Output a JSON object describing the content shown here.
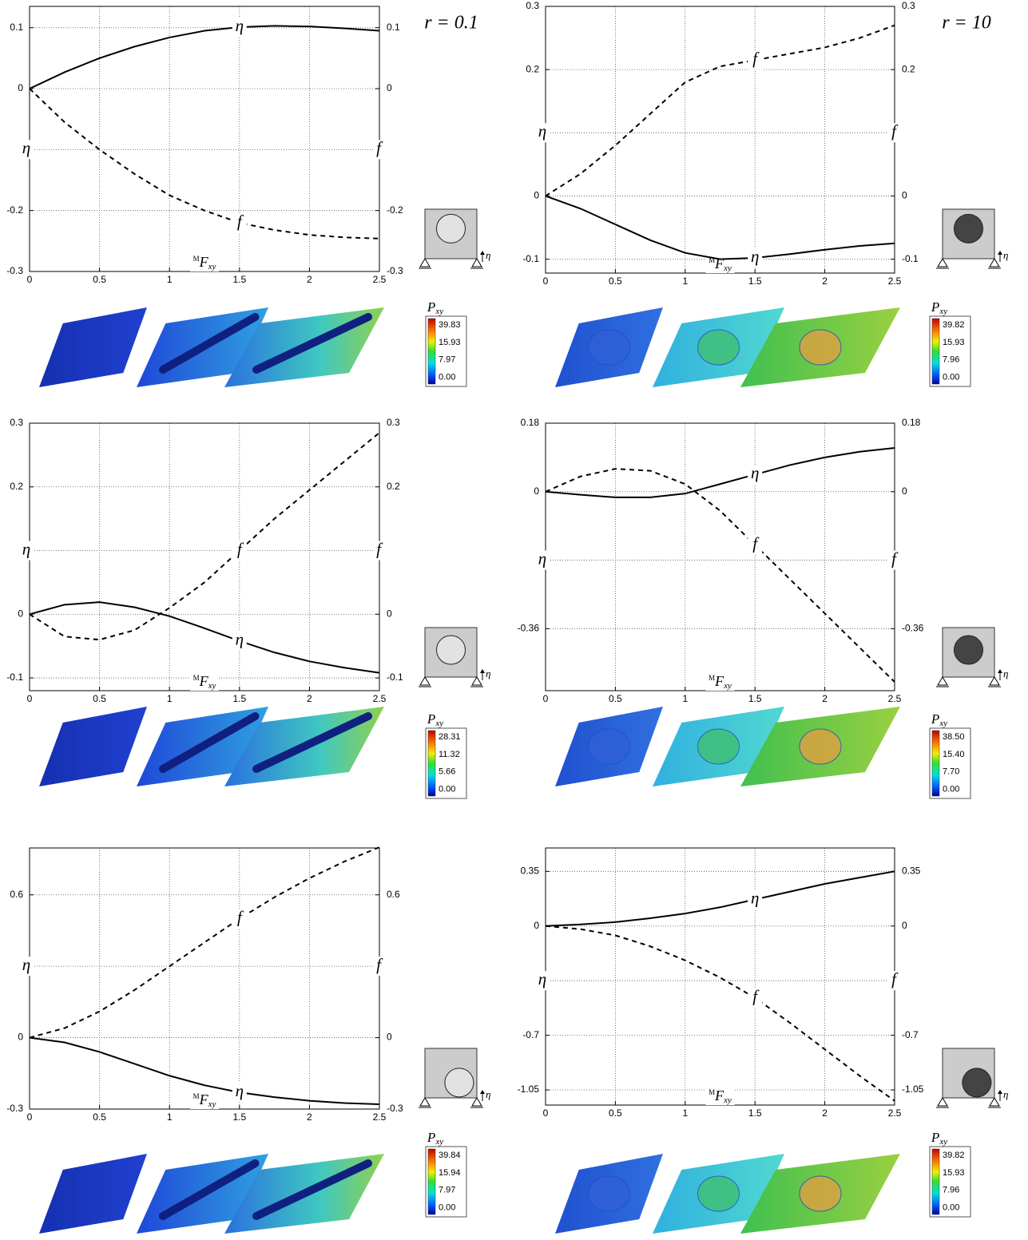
{
  "chart_data": [
    {
      "type": "line",
      "annotation": "r = 0.1",
      "xlabel": {
        "sup": "M",
        "main": "F",
        "sub": "xy"
      },
      "ylabel": "η",
      "y2label": "f",
      "x": [
        0,
        0.25,
        0.5,
        0.75,
        1,
        1.25,
        1.5,
        1.75,
        2,
        2.25,
        2.5
      ],
      "series": [
        {
          "name": "f",
          "color": "#000000",
          "dash": true,
          "values": [
            0,
            -0.055,
            -0.1,
            -0.14,
            -0.175,
            -0.2,
            -0.22,
            -0.232,
            -0.24,
            -0.244,
            -0.246
          ]
        },
        {
          "name": "η",
          "color": "#000000",
          "dash": false,
          "values": [
            0,
            0.027,
            0.05,
            0.069,
            0.084,
            0.095,
            0.101,
            0.103,
            0.102,
            0.099,
            0.095
          ]
        }
      ],
      "xlim": [
        0,
        2.5
      ],
      "xticks": [
        0,
        0.5,
        1,
        1.5,
        2,
        2.5
      ],
      "ylim": [
        -0.3,
        0.135
      ],
      "yticks": [
        -0.3,
        -0.2,
        {
          "value": -0.1,
          "label": null
        },
        0,
        0.1
      ],
      "y2lim": [
        -0.3,
        0.135
      ],
      "y2ticks": [
        -0.3,
        -0.2,
        {
          "value": -0.1,
          "label": null
        },
        0,
        0.1
      ],
      "grid": true,
      "colorbar": {
        "title": {
          "main": "P",
          "sub": "xy"
        },
        "ticks": [
          39.83,
          15.93,
          7.97,
          {
            "value": 0,
            "label": "0.00"
          }
        ]
      }
    },
    {
      "type": "line",
      "annotation": "r = 10",
      "xlabel": {
        "sup": "M",
        "main": "F",
        "sub": "xy"
      },
      "ylabel": "η",
      "y2label": "f",
      "x": [
        0,
        0.25,
        0.5,
        0.75,
        1,
        1.25,
        1.5,
        1.75,
        2,
        2.25,
        2.5
      ],
      "series": [
        {
          "name": "f",
          "color": "#000000",
          "dash": true,
          "values": [
            0,
            0.035,
            0.08,
            0.13,
            0.18,
            0.205,
            0.215,
            0.225,
            0.235,
            0.25,
            0.27
          ]
        },
        {
          "name": "η",
          "color": "#000000",
          "dash": false,
          "values": [
            0,
            -0.02,
            -0.045,
            -0.07,
            -0.09,
            -0.1,
            -0.098,
            -0.092,
            -0.085,
            -0.079,
            -0.075
          ]
        }
      ],
      "xlim": [
        0,
        2.5
      ],
      "xticks": [
        0,
        0.5,
        1,
        1.5,
        2,
        2.5
      ],
      "ylim": [
        -0.122,
        0.3
      ],
      "yticks": [
        -0.1,
        0,
        {
          "value": 0.1,
          "label": null
        },
        0.2,
        0.3
      ],
      "y2lim": [
        -0.122,
        0.3
      ],
      "y2ticks": [
        -0.1,
        0,
        {
          "value": 0.1,
          "label": null
        },
        0.2,
        0.3
      ],
      "grid": true,
      "colorbar": {
        "title": {
          "main": "P",
          "sub": "xy"
        },
        "ticks": [
          39.82,
          15.93,
          7.96,
          {
            "value": 0,
            "label": "0.00"
          }
        ]
      }
    },
    {
      "type": "line",
      "xlabel": {
        "sup": "M",
        "main": "F",
        "sub": "xy"
      },
      "ylabel": "η",
      "y2label": "f",
      "x": [
        0,
        0.25,
        0.5,
        0.75,
        1,
        1.25,
        1.5,
        1.75,
        2,
        2.25,
        2.5
      ],
      "series": [
        {
          "name": "f",
          "color": "#000000",
          "dash": true,
          "values": [
            0,
            -0.035,
            -0.04,
            -0.025,
            0.01,
            0.05,
            0.1,
            0.15,
            0.195,
            0.24,
            0.285
          ]
        },
        {
          "name": "η",
          "color": "#000000",
          "dash": false,
          "values": [
            0,
            0.015,
            0.019,
            0.011,
            -0.003,
            -0.022,
            -0.042,
            -0.06,
            -0.074,
            -0.084,
            -0.092
          ]
        }
      ],
      "xlim": [
        0,
        2.5
      ],
      "xticks": [
        0,
        0.5,
        1,
        1.5,
        2,
        2.5
      ],
      "ylim": [
        -0.12,
        0.3
      ],
      "yticks": [
        -0.1,
        0,
        {
          "value": 0.1,
          "label": null
        },
        0.2,
        0.3
      ],
      "y2lim": [
        -0.12,
        0.3
      ],
      "y2ticks": [
        -0.1,
        0,
        {
          "value": 0.1,
          "label": null
        },
        0.2,
        0.3
      ],
      "grid": true,
      "colorbar": {
        "title": {
          "main": "P",
          "sub": "xy"
        },
        "ticks": [
          28.31,
          11.32,
          5.66,
          {
            "value": 0,
            "label": "0.00"
          }
        ]
      }
    },
    {
      "type": "line",
      "xlabel": {
        "sup": "M",
        "main": "F",
        "sub": "xy"
      },
      "ylabel": "η",
      "y2label": "f",
      "x": [
        0,
        0.25,
        0.5,
        0.75,
        1,
        1.25,
        1.5,
        1.75,
        2,
        2.25,
        2.5
      ],
      "series": [
        {
          "name": "f",
          "color": "#000000",
          "dash": true,
          "values": [
            0,
            0.04,
            0.06,
            0.055,
            0.02,
            -0.05,
            -0.14,
            -0.23,
            -0.32,
            -0.41,
            -0.5
          ]
        },
        {
          "name": "η",
          "color": "#000000",
          "dash": false,
          "values": [
            0,
            -0.008,
            -0.015,
            -0.015,
            -0.005,
            0.02,
            0.045,
            0.07,
            0.09,
            0.105,
            0.115
          ]
        }
      ],
      "xlim": [
        0,
        2.5
      ],
      "xticks": [
        0,
        0.5,
        1,
        1.5,
        2,
        2.5
      ],
      "ylim": [
        -0.523,
        0.18
      ],
      "yticks": [
        -0.36,
        {
          "value": -0.18,
          "label": null
        },
        0,
        0.18
      ],
      "y2lim": [
        -0.523,
        0.18
      ],
      "y2ticks": [
        -0.36,
        {
          "value": -0.18,
          "label": null
        },
        0,
        0.18
      ],
      "grid": true,
      "colorbar": {
        "title": {
          "main": "P",
          "sub": "xy"
        },
        "ticks": [
          {
            "value": 38.5,
            "label": "38.50"
          },
          {
            "value": 15.4,
            "label": "15.40"
          },
          {
            "value": 7.7,
            "label": "7.70"
          },
          {
            "value": 0,
            "label": "0.00"
          }
        ]
      }
    },
    {
      "type": "line",
      "xlabel": {
        "sup": "M",
        "main": "F",
        "sub": "xy"
      },
      "ylabel": "η",
      "y2label": "f",
      "x": [
        0,
        0.25,
        0.5,
        0.75,
        1,
        1.25,
        1.5,
        1.75,
        2,
        2.25,
        2.5
      ],
      "series": [
        {
          "name": "f",
          "color": "#000000",
          "dash": true,
          "values": [
            0,
            0.04,
            0.11,
            0.2,
            0.3,
            0.4,
            0.5,
            0.59,
            0.67,
            0.74,
            0.8
          ]
        },
        {
          "name": "η",
          "color": "#000000",
          "dash": false,
          "values": [
            0,
            -0.02,
            -0.06,
            -0.11,
            -0.16,
            -0.2,
            -0.23,
            -0.25,
            -0.265,
            -0.275,
            -0.28
          ]
        }
      ],
      "xlim": [
        0,
        2.5
      ],
      "xticks": [
        0,
        0.5,
        1,
        1.5,
        2,
        2.5
      ],
      "ylim": [
        -0.3,
        0.797
      ],
      "yticks": [
        -0.3,
        0,
        {
          "value": 0.3,
          "label": null
        },
        0.6
      ],
      "y2lim": [
        -0.3,
        0.797
      ],
      "y2ticks": [
        -0.3,
        0,
        {
          "value": 0.3,
          "label": null
        },
        0.6
      ],
      "grid": true,
      "colorbar": {
        "title": {
          "main": "P",
          "sub": "xy"
        },
        "ticks": [
          39.84,
          15.94,
          7.97,
          {
            "value": 0,
            "label": "0.00"
          }
        ]
      }
    },
    {
      "type": "line",
      "xlabel": {
        "sup": "M",
        "main": "F",
        "sub": "xy"
      },
      "ylabel": "η",
      "y2label": "f",
      "x": [
        0,
        0.25,
        0.5,
        0.75,
        1,
        1.25,
        1.5,
        1.75,
        2,
        2.25,
        2.5
      ],
      "series": [
        {
          "name": "f",
          "color": "#000000",
          "dash": true,
          "values": [
            0,
            -0.02,
            -0.06,
            -0.13,
            -0.22,
            -0.33,
            -0.46,
            -0.62,
            -0.79,
            -0.96,
            -1.12
          ]
        },
        {
          "name": "η",
          "color": "#000000",
          "dash": false,
          "values": [
            0,
            0.01,
            0.025,
            0.05,
            0.08,
            0.12,
            0.17,
            0.22,
            0.27,
            0.31,
            0.35
          ]
        }
      ],
      "xlim": [
        0,
        2.5
      ],
      "xticks": [
        0,
        0.5,
        1,
        1.5,
        2,
        2.5
      ],
      "ylim": [
        -1.147,
        0.5
      ],
      "yticks": [
        -1.05,
        -0.7,
        {
          "value": -0.35,
          "label": null
        },
        0,
        0.35
      ],
      "y2lim": [
        -1.147,
        0.5
      ],
      "y2ticks": [
        -1.05,
        -0.7,
        {
          "value": -0.35,
          "label": null
        },
        0,
        0.35
      ],
      "grid": true,
      "colorbar": {
        "title": {
          "main": "P",
          "sub": "xy"
        },
        "ticks": [
          39.82,
          15.93,
          7.96,
          {
            "value": 0,
            "label": "0.00"
          }
        ]
      }
    }
  ]
}
